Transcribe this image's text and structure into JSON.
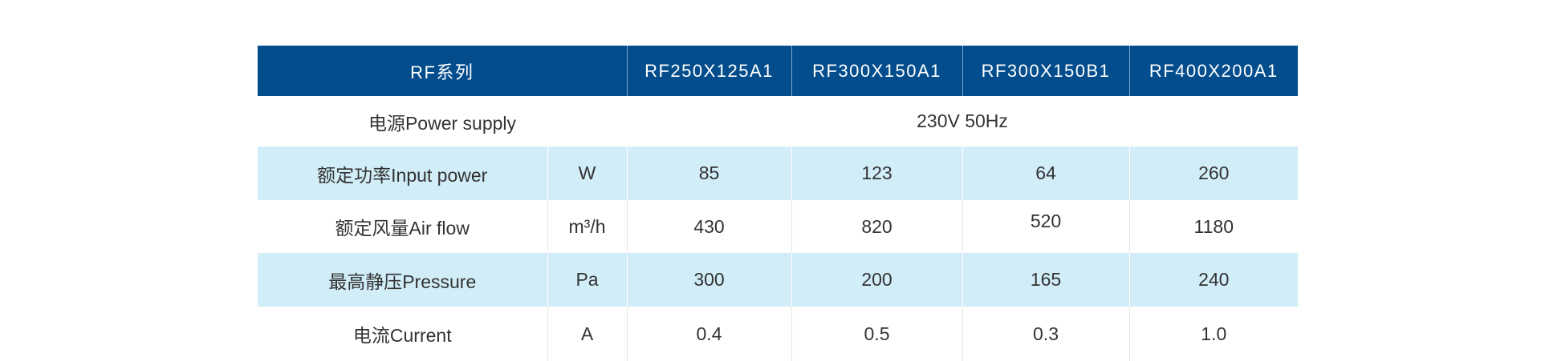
{
  "table": {
    "header": {
      "series": "RF系列",
      "models": [
        "RF250X125A1",
        "RF300X150A1",
        "RF300X150B1",
        "RF400X200A1"
      ]
    },
    "power_supply": {
      "label": "电源Power supply",
      "value": "230V 50Hz"
    },
    "rows": [
      {
        "label": "额定功率Input power",
        "unit": "W",
        "values": [
          "85",
          "123",
          "64",
          "260"
        ]
      },
      {
        "label": "额定风量Air flow",
        "unit": "m³/h",
        "values": [
          "430",
          "820",
          "520",
          "1180"
        ]
      },
      {
        "label": "最高静压Pressure",
        "unit": "Pa",
        "values": [
          "300",
          "200",
          "165",
          "240"
        ]
      },
      {
        "label": "电流Current",
        "unit": "A",
        "values": [
          "0.4",
          "0.5",
          "0.3",
          "1.0"
        ]
      }
    ],
    "colors": {
      "header_bg": "#034d8d",
      "band_bg": "#d1edf8",
      "text": "#333333"
    }
  }
}
